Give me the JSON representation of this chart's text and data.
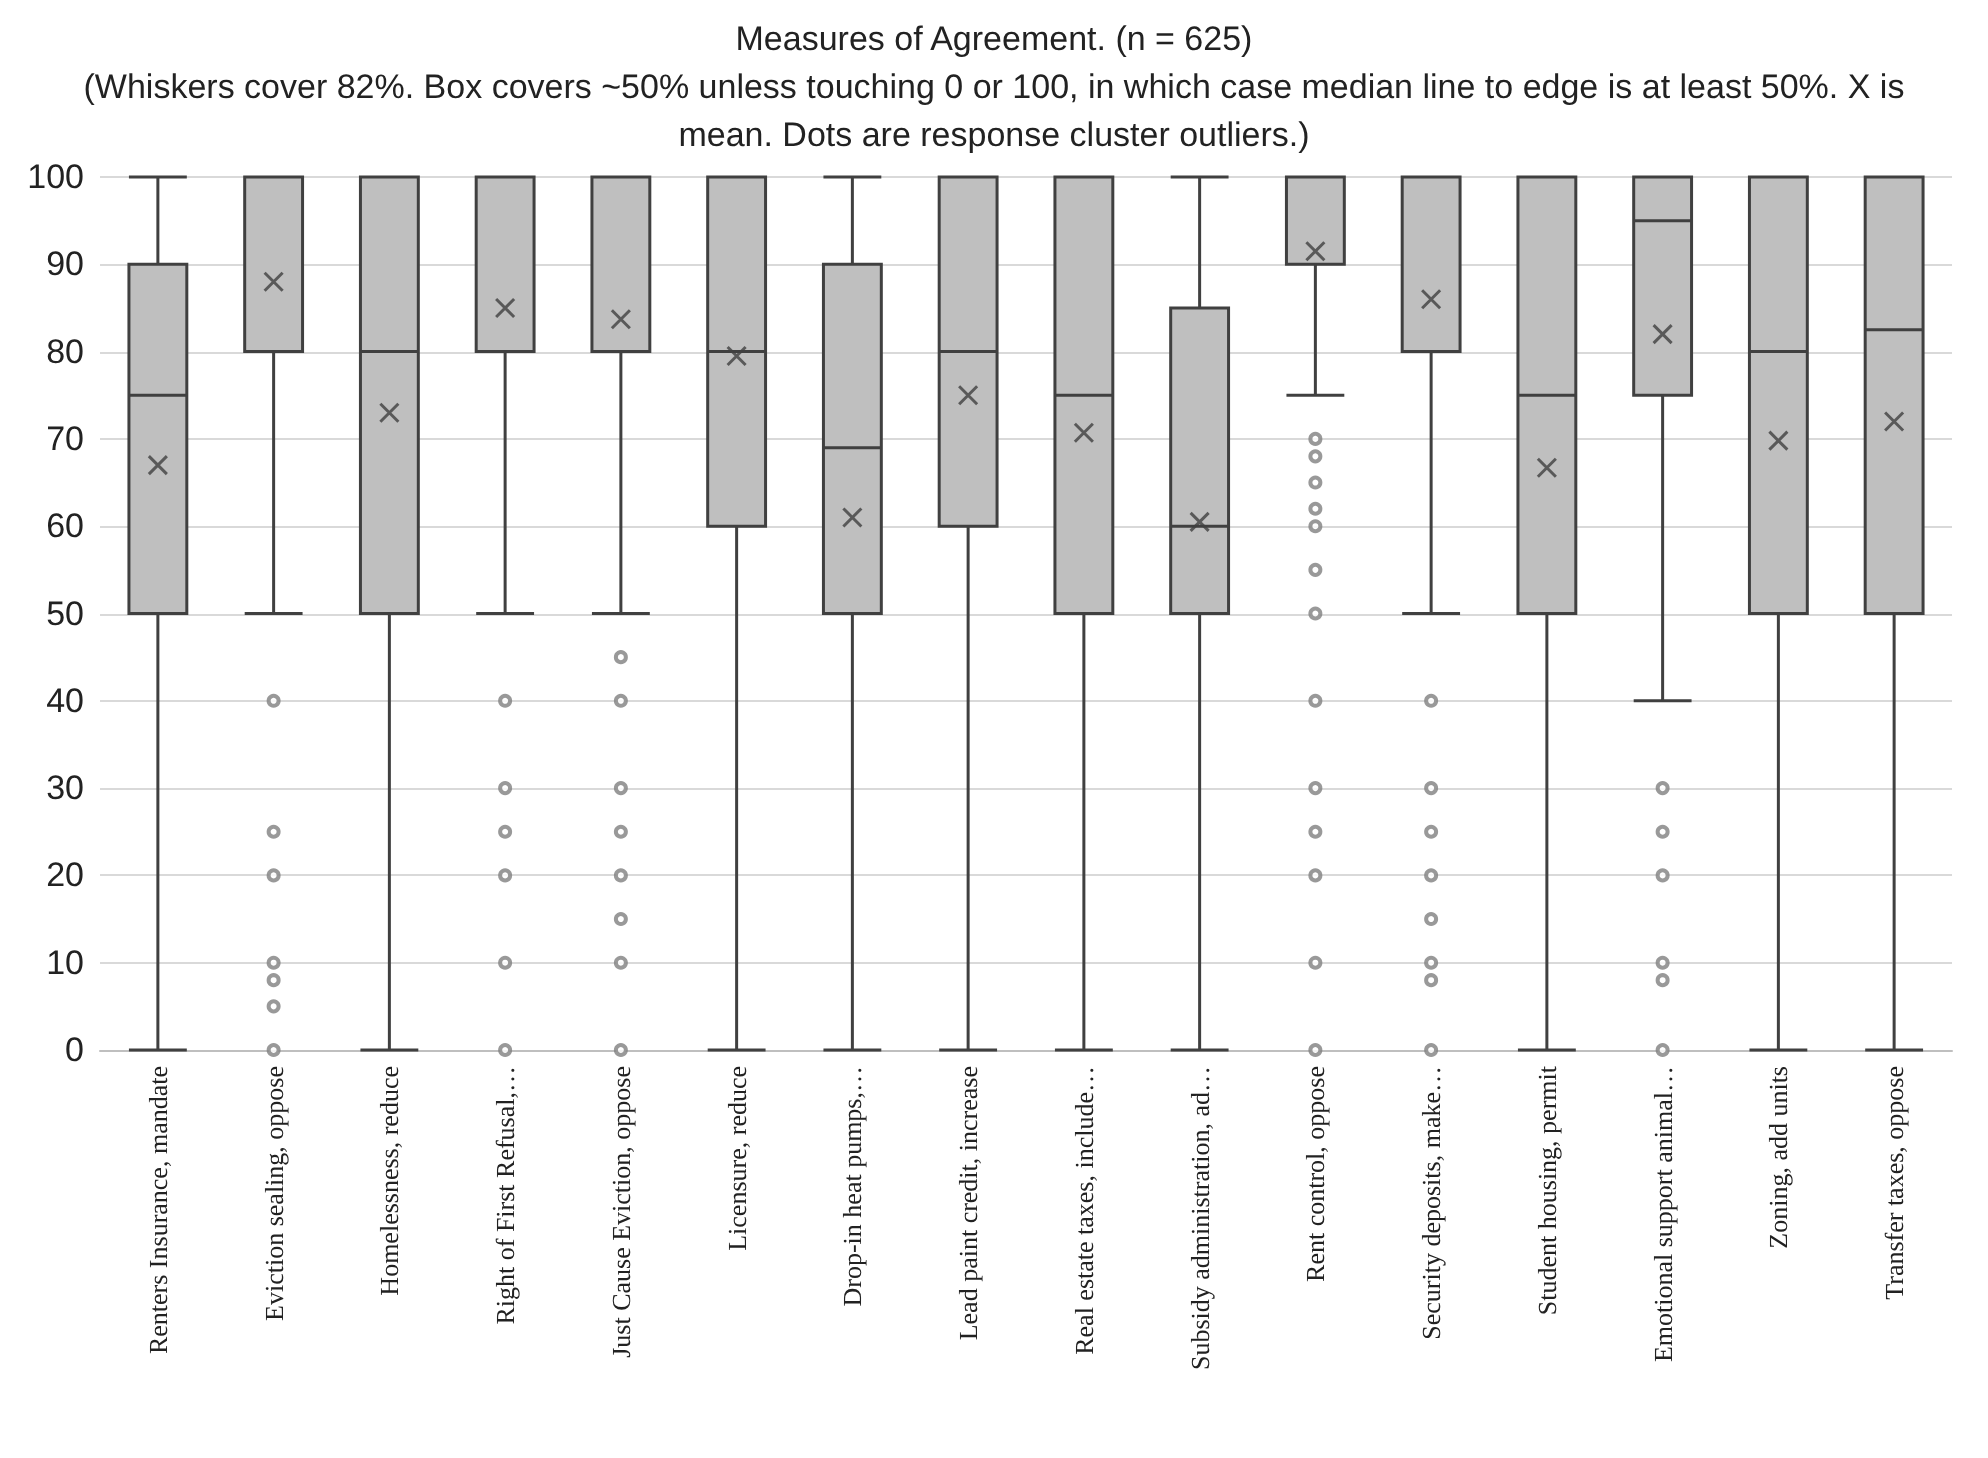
{
  "chart_data": {
    "type": "box",
    "title": "Measures of Agreement. (n = 625)",
    "subtitle": "(Whiskers cover 82%. Box covers ~50% unless touching 0 or 100, in which case median line to edge is at least 50%. X is mean. Dots are response cluster outliers.)",
    "categories": [
      "Renters Insurance, mandate",
      "Eviction sealing, oppose",
      "Homelessness, reduce",
      "Right of First Refusal,…",
      "Just Cause Eviction, oppose",
      "Licensure, reduce",
      "Drop-in heat pumps,…",
      "Lead paint credit, increase",
      "Real estate taxes, include…",
      "Subsidy administration, ad…",
      "Rent control, oppose",
      "Security deposits, make…",
      "Student housing, permit",
      "Emotional support animal…",
      "Zoning, add units",
      "Transfer taxes, oppose"
    ],
    "boxes": [
      {
        "low": 0,
        "q1": 50,
        "median": 75,
        "q3": 90,
        "high": 100,
        "mean": 67
      },
      {
        "low": 50,
        "q1": 80,
        "median": 100,
        "q3": 100,
        "high": 100,
        "mean": 88,
        "outliers": [
          40,
          25,
          20,
          10,
          8,
          5,
          0
        ]
      },
      {
        "low": 0,
        "q1": 50,
        "median": 80,
        "q3": 100,
        "high": 100,
        "mean": 73
      },
      {
        "low": 50,
        "q1": 80,
        "median": 100,
        "q3": 100,
        "high": 100,
        "mean": 85,
        "outliers": [
          40,
          30,
          25,
          20,
          10,
          0
        ]
      },
      {
        "low": 50,
        "q1": 80,
        "median": 100,
        "q3": 100,
        "high": 100,
        "mean": 83.7,
        "outliers": [
          45,
          40,
          30,
          25,
          20,
          15,
          10,
          0
        ]
      },
      {
        "low": 0,
        "q1": 60,
        "median": 80,
        "q3": 100,
        "high": 100,
        "mean": 79.5
      },
      {
        "low": 0,
        "q1": 50,
        "median": 69,
        "q3": 90,
        "high": 100,
        "mean": 61
      },
      {
        "low": 0,
        "q1": 60,
        "median": 80,
        "q3": 100,
        "high": 100,
        "mean": 75
      },
      {
        "low": 0,
        "q1": 50,
        "median": 75,
        "q3": 100,
        "high": 100,
        "mean": 70.7
      },
      {
        "low": 0,
        "q1": 50,
        "median": 60,
        "q3": 85,
        "high": 100,
        "mean": 60.5
      },
      {
        "low": 75,
        "q1": 90,
        "median": 100,
        "q3": 100,
        "high": 100,
        "mean": 91.5,
        "outliers": [
          70,
          68,
          65,
          62,
          60,
          55,
          50,
          40,
          30,
          25,
          20,
          10,
          0
        ]
      },
      {
        "low": 50,
        "q1": 80,
        "median": 100,
        "q3": 100,
        "high": 100,
        "mean": 86,
        "outliers": [
          40,
          30,
          25,
          20,
          15,
          10,
          8,
          0
        ]
      },
      {
        "low": 0,
        "q1": 50,
        "median": 75,
        "q3": 100,
        "high": 100,
        "mean": 66.7
      },
      {
        "low": 40,
        "q1": 75,
        "median": 95,
        "q3": 100,
        "high": 100,
        "mean": 82,
        "outliers": [
          30,
          25,
          20,
          10,
          8,
          0
        ]
      },
      {
        "low": 0,
        "q1": 50,
        "median": 80,
        "q3": 100,
        "high": 100,
        "mean": 69.8
      },
      {
        "low": 0,
        "q1": 50,
        "median": 82.5,
        "q3": 100,
        "high": 100,
        "mean": 72
      }
    ],
    "color": "#bfbfbf",
    "ylim": [
      0,
      100
    ],
    "yticks": [
      0,
      10,
      20,
      30,
      40,
      50,
      60,
      70,
      80,
      90,
      100
    ],
    "grid": "y"
  }
}
